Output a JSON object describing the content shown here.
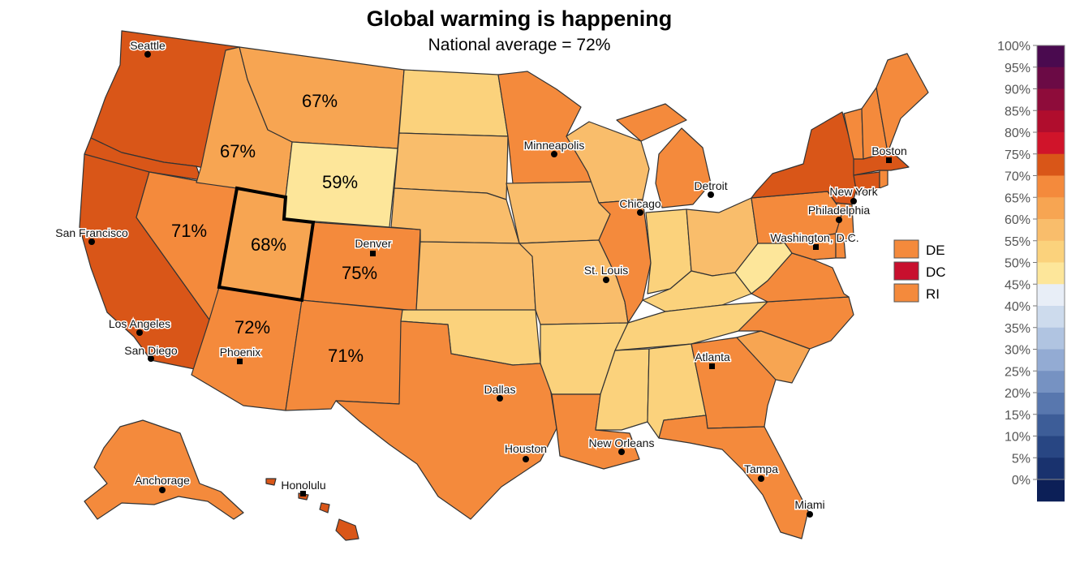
{
  "title": "Global warming is happening",
  "subtitle": "National average = 72%",
  "colors": {
    "c55": "#fde69a",
    "c60": "#fbd27c",
    "c65": "#f9bd6b",
    "c70": "#f7a552",
    "c75": "#f48a3c",
    "c80": "#d95618",
    "dc": "#c8102e",
    "outline": "#333333",
    "highlight": "#000000"
  },
  "map_labels": [
    {
      "state": "Montana",
      "text": "67%"
    },
    {
      "state": "Idaho",
      "text": "67%"
    },
    {
      "state": "Wyoming",
      "text": "59%"
    },
    {
      "state": "Nevada",
      "text": "71%"
    },
    {
      "state": "Utah",
      "text": "68%"
    },
    {
      "state": "Colorado",
      "text": "75%"
    },
    {
      "state": "Arizona",
      "text": "72%"
    },
    {
      "state": "New Mexico",
      "text": "71%"
    }
  ],
  "highlighted_state": "Utah",
  "cities": [
    "Seattle",
    "San Francisco",
    "Los Angeles",
    "San Diego",
    "Phoenix",
    "Denver",
    "Minneapolis",
    "Chicago",
    "Detroit",
    "St. Louis",
    "Dallas",
    "Houston",
    "New Orleans",
    "Atlanta",
    "Tampa",
    "Miami",
    "Boston",
    "New York",
    "Philadelphia",
    "Washington, D.C.",
    "Anchorage",
    "Honolulu"
  ],
  "small_states": [
    {
      "label": "DE",
      "color": "#f48a3c"
    },
    {
      "label": "DC",
      "color": "#c8102e"
    },
    {
      "label": "RI",
      "color": "#f48a3c"
    }
  ],
  "color_scale": {
    "ticks": [
      "100%",
      "95%",
      "90%",
      "85%",
      "80%",
      "75%",
      "70%",
      "65%",
      "60%",
      "55%",
      "50%",
      "45%",
      "40%",
      "35%",
      "30%",
      "25%",
      "20%",
      "15%",
      "10%",
      "5%",
      "0%"
    ],
    "bins": [
      "#4a0a4f",
      "#6b0a45",
      "#8e0c3a",
      "#b00d2d",
      "#d0142a",
      "#d95618",
      "#f48a3c",
      "#f7a552",
      "#f9bd6b",
      "#fbd27c",
      "#fde69a",
      "#e8eef7",
      "#cddbed",
      "#b0c4e1",
      "#93abd3",
      "#7692c2",
      "#5877ae",
      "#3d5d98",
      "#284683",
      "#19326e",
      "#0c1f57"
    ]
  }
}
